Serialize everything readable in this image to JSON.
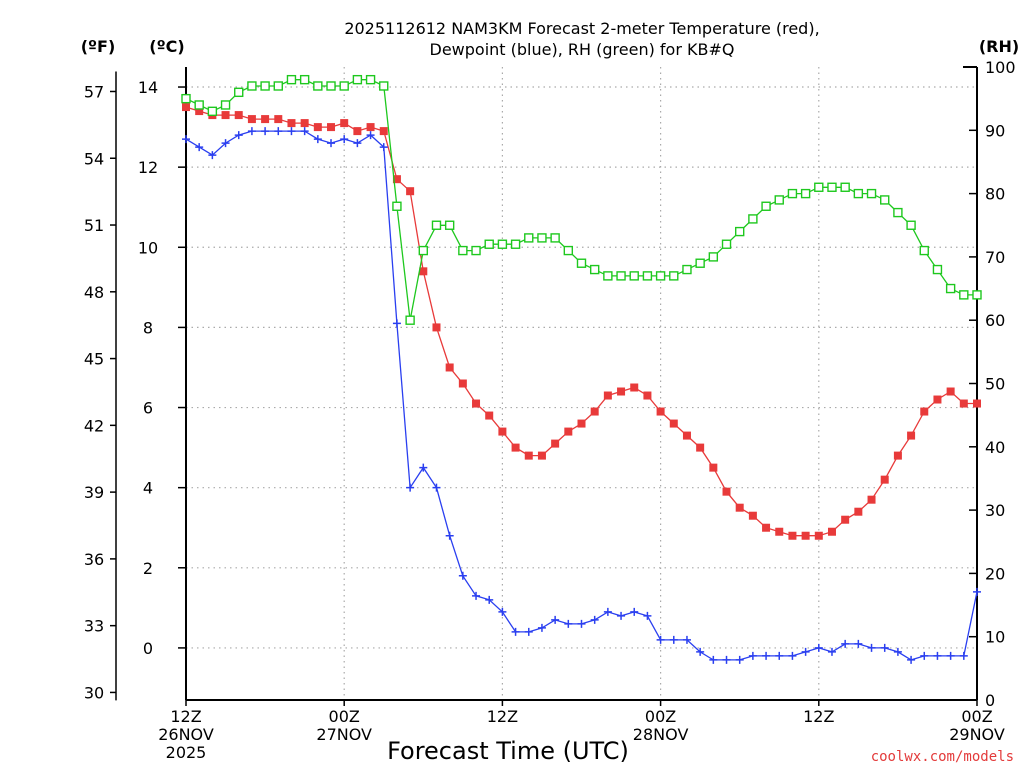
{
  "chart_data": {
    "type": "line",
    "title_line1": "2025112612 NAM3KM Forecast 2-meter Temperature (red),",
    "title_line2": "Dewpoint (blue), RH (green) for KB#Q",
    "xlabel": "Forecast Time (UTC)",
    "credit": "coolwx.com/models",
    "units": {
      "fahrenheit": "(ºF)",
      "celsius": "(ºC)",
      "rh": "(RH)"
    },
    "x_range_hours": [
      0,
      60
    ],
    "x_ticks": [
      {
        "hour": 0,
        "l1": "12Z",
        "l2": "26NOV",
        "l3": "2025"
      },
      {
        "hour": 12,
        "l1": "00Z",
        "l2": "27NOV",
        "l3": ""
      },
      {
        "hour": 24,
        "l1": "12Z",
        "l2": "",
        "l3": ""
      },
      {
        "hour": 36,
        "l1": "00Z",
        "l2": "28NOV",
        "l3": ""
      },
      {
        "hour": 48,
        "l1": "12Z",
        "l2": "",
        "l3": ""
      },
      {
        "hour": 60,
        "l1": "00Z",
        "l2": "29NOV",
        "l3": ""
      }
    ],
    "celsius_axis": {
      "range": [
        -1.3,
        14.5
      ],
      "ticks": [
        "0",
        "2",
        "4",
        "6",
        "8",
        "10",
        "12",
        "14"
      ]
    },
    "fahrenheit_axis": {
      "ticks": [
        "30",
        "33",
        "36",
        "39",
        "42",
        "45",
        "48",
        "51",
        "54",
        "57"
      ]
    },
    "rh_axis": {
      "range": [
        0,
        100
      ],
      "ticks": [
        "0",
        "10",
        "20",
        "30",
        "40",
        "50",
        "60",
        "70",
        "80",
        "90",
        "100"
      ]
    },
    "colors": {
      "temperature": "#e83a3a",
      "dewpoint": "#2a3ff0",
      "rh": "#1ec81e",
      "grid": "#aaaaaa",
      "axis": "#000000"
    },
    "series": [
      {
        "name": "Temperature",
        "axis": "celsius",
        "marker": "filled-square",
        "values": [
          13.5,
          13.4,
          13.3,
          13.3,
          13.3,
          13.2,
          13.2,
          13.2,
          13.1,
          13.1,
          13.0,
          13.0,
          13.1,
          12.9,
          13.0,
          12.9,
          11.7,
          11.4,
          9.4,
          8.0,
          7.0,
          6.6,
          6.1,
          5.8,
          5.4,
          5.0,
          4.8,
          4.8,
          5.1,
          5.4,
          5.6,
          5.9,
          6.3,
          6.4,
          6.5,
          6.3,
          5.9,
          5.6,
          5.3,
          5.0,
          4.5,
          3.9,
          3.5,
          3.3,
          3.0,
          2.9,
          2.8,
          2.8,
          2.8,
          2.9,
          3.2,
          3.4,
          3.7,
          4.2,
          4.8,
          5.3,
          5.9,
          6.2,
          6.4,
          6.1,
          6.1
        ]
      },
      {
        "name": "Dewpoint",
        "axis": "celsius",
        "marker": "plus",
        "values": [
          12.7,
          12.5,
          12.3,
          12.6,
          12.8,
          12.9,
          12.9,
          12.9,
          12.9,
          12.9,
          12.7,
          12.6,
          12.7,
          12.6,
          12.8,
          12.5,
          8.1,
          4.0,
          4.5,
          4.0,
          2.8,
          1.8,
          1.3,
          1.2,
          0.9,
          0.4,
          0.4,
          0.5,
          0.7,
          0.6,
          0.6,
          0.7,
          0.9,
          0.8,
          0.9,
          0.8,
          0.2,
          0.2,
          0.2,
          -0.1,
          -0.3,
          -0.3,
          -0.3,
          -0.2,
          -0.2,
          -0.2,
          -0.2,
          -0.1,
          0.0,
          -0.1,
          0.1,
          0.1,
          0.0,
          0.0,
          -0.1,
          -0.3,
          -0.2,
          -0.2,
          -0.2,
          -0.2,
          1.4
        ]
      },
      {
        "name": "RH",
        "axis": "rh",
        "marker": "open-square",
        "values": [
          95,
          94,
          93,
          94,
          96,
          97,
          97,
          97,
          98,
          98,
          97,
          97,
          97,
          98,
          98,
          97,
          78,
          60,
          71,
          75,
          75,
          71,
          71,
          72,
          72,
          72,
          73,
          73,
          73,
          71,
          69,
          68,
          67,
          67,
          67,
          67,
          67,
          67,
          68,
          69,
          70,
          72,
          74,
          76,
          78,
          79,
          80,
          80,
          81,
          81,
          81,
          80,
          80,
          79,
          77,
          75,
          71,
          68,
          65,
          64,
          64
        ]
      }
    ]
  }
}
